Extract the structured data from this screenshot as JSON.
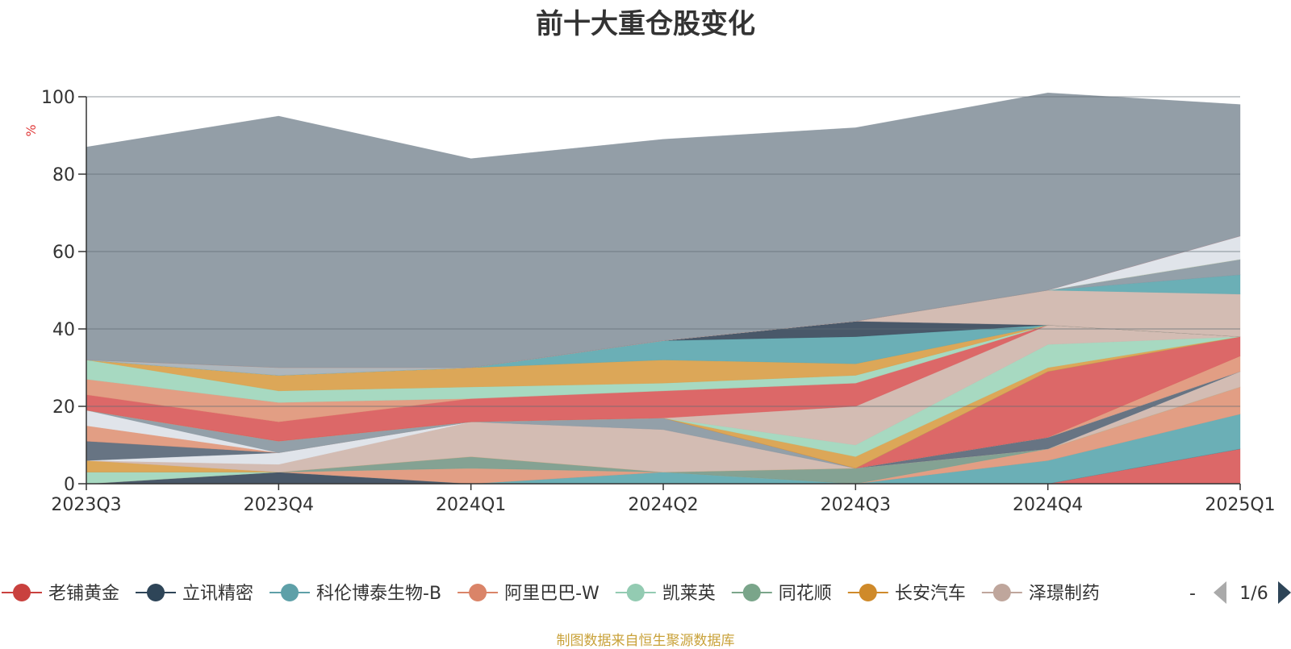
{
  "chart_data": {
    "type": "area",
    "title": "前十大重仓股变化",
    "ylabel": "%",
    "ylim": [
      0,
      100
    ],
    "yticks": [
      0,
      20,
      40,
      60,
      80,
      100
    ],
    "categories": [
      "2023Q3",
      "2023Q4",
      "2024Q1",
      "2024Q2",
      "2024Q3",
      "2024Q4",
      "2025Q1"
    ],
    "grid": true,
    "legend_position": "bottom",
    "stacked": true,
    "series": [
      {
        "name": "老铺黄金",
        "color": "#d95b5b",
        "values": [
          0,
          0,
          0,
          0,
          0,
          0,
          9
        ]
      },
      {
        "name": "立讯精密",
        "color": "#3a4a5c",
        "values": [
          0,
          3,
          0,
          0,
          0,
          0,
          0
        ]
      },
      {
        "name": "科伦博泰生物-B",
        "color": "#5ea8b0",
        "values": [
          0,
          0,
          0,
          3,
          0,
          6,
          9
        ]
      },
      {
        "name": "阿里巴巴-W",
        "color": "#e0967a",
        "values": [
          0,
          0,
          4,
          0,
          0,
          3,
          7
        ]
      },
      {
        "name": "凯莱英",
        "color": "#9fd6bc",
        "values": [
          3,
          0,
          0,
          0,
          0,
          0,
          0
        ]
      },
      {
        "name": "同花顺",
        "color": "#7a9a8a",
        "values": [
          0,
          0,
          3,
          0,
          4,
          0,
          0
        ]
      },
      {
        "name": "长安汽车",
        "color": "#d9a04a",
        "values": [
          3,
          0,
          0,
          0,
          0,
          0,
          0
        ]
      },
      {
        "name": "泽璟制药",
        "color": "#cfb6ad",
        "values": [
          0,
          2,
          9,
          11,
          0,
          0,
          4
        ]
      },
      {
        "name": "",
        "color": "#dde2e8",
        "values": [
          0,
          3,
          0,
          0,
          0,
          0,
          0
        ]
      },
      {
        "name": "",
        "color": "#5a6878",
        "values": [
          5,
          0,
          0,
          0,
          0,
          3,
          0
        ]
      },
      {
        "name": "",
        "color": "#e0967a",
        "values": [
          4,
          0,
          0,
          0,
          0,
          0,
          0
        ]
      },
      {
        "name": "",
        "color": "#dde2e8",
        "values": [
          4,
          0,
          0,
          0,
          0,
          0,
          0
        ]
      },
      {
        "name": "",
        "color": "#8a98a2",
        "values": [
          0,
          3,
          0,
          3,
          0,
          0,
          0
        ]
      },
      {
        "name": "",
        "color": "#e0967a",
        "values": [
          0,
          0,
          0,
          0,
          0,
          0,
          4
        ]
      },
      {
        "name": "",
        "color": "#d95b5b",
        "values": [
          0,
          0,
          0,
          0,
          0,
          17,
          5
        ]
      },
      {
        "name": "",
        "color": "#7a9a8a",
        "values": [
          0,
          0,
          0,
          0,
          0,
          0,
          0
        ]
      },
      {
        "name": "",
        "color": "#d9a04a",
        "values": [
          0,
          0,
          0,
          0,
          3,
          1,
          0
        ]
      },
      {
        "name": "",
        "color": "#9fd6bc",
        "values": [
          0,
          0,
          0,
          0,
          3,
          6,
          0
        ]
      },
      {
        "name": "",
        "color": "#cfb6ad",
        "values": [
          0,
          0,
          0,
          0,
          10,
          5,
          0
        ]
      },
      {
        "name": "",
        "color": "#d95b5b",
        "values": [
          4,
          5,
          6,
          7,
          6,
          0,
          0
        ]
      },
      {
        "name": "",
        "color": "#e0967a",
        "values": [
          4,
          5,
          0,
          0,
          0,
          0,
          0
        ]
      },
      {
        "name": "",
        "color": "#9fd6bc",
        "values": [
          5,
          3,
          3,
          2,
          2,
          0,
          0
        ]
      },
      {
        "name": "",
        "color": "#d9a04a",
        "values": [
          0,
          4,
          5,
          6,
          3,
          0,
          0
        ]
      },
      {
        "name": "",
        "color": "#5ea8b0",
        "values": [
          0,
          0,
          0,
          5,
          7,
          0,
          0
        ]
      },
      {
        "name": "",
        "color": "#3a4a5c",
        "values": [
          0,
          0,
          0,
          0,
          4,
          0,
          0
        ]
      },
      {
        "name": "",
        "color": "#cfb6ad",
        "values": [
          0,
          0,
          0,
          0,
          0,
          9,
          11
        ]
      },
      {
        "name": "",
        "color": "#5ea8b0",
        "values": [
          0,
          0,
          0,
          0,
          0,
          0,
          5
        ]
      },
      {
        "name": "",
        "color": "#8a98a2",
        "values": [
          0,
          0,
          0,
          0,
          0,
          0,
          4
        ]
      },
      {
        "name": "",
        "color": "#5ea8b0",
        "values": [
          0,
          0,
          0,
          0,
          0,
          0,
          0
        ]
      },
      {
        "name": "",
        "color": "#9fd6bc",
        "values": [
          0,
          0,
          0,
          0,
          0,
          0,
          0
        ]
      },
      {
        "name": "",
        "color": "#a7b0b6",
        "values": [
          0,
          2,
          0,
          0,
          0,
          0,
          0
        ]
      },
      {
        "name": "",
        "color": "#cfb6ad",
        "values": [
          0,
          0,
          0,
          0,
          0,
          0,
          0
        ]
      },
      {
        "name": "",
        "color": "#d9a04a",
        "values": [
          0,
          0,
          0,
          0,
          0,
          0,
          0
        ]
      },
      {
        "name": "",
        "color": "#9fd6bc",
        "values": [
          0,
          0,
          0,
          0,
          0,
          0,
          0
        ]
      },
      {
        "name": "",
        "color": "#dde2e8",
        "values": [
          0,
          0,
          0,
          0,
          0,
          0,
          6
        ]
      },
      {
        "name": "",
        "color": "#d95b5b",
        "values": [
          0,
          0,
          0,
          0,
          0,
          0,
          0
        ]
      },
      {
        "name": "",
        "color": "#8a96a0",
        "values": [
          55,
          65,
          54,
          52,
          50,
          51,
          34
        ]
      }
    ]
  },
  "legend": {
    "items": [
      {
        "label": "老铺黄金",
        "color": "#c9413e"
      },
      {
        "label": "立讯精密",
        "color": "#2e4558"
      },
      {
        "label": "科伦博泰生物-B",
        "color": "#5ea0a8"
      },
      {
        "label": "阿里巴巴-W",
        "color": "#da8468"
      },
      {
        "label": "凯莱英",
        "color": "#93cbb2"
      },
      {
        "label": "同花顺",
        "color": "#7aa58a"
      },
      {
        "label": "长安汽车",
        "color": "#cf8a2a"
      },
      {
        "label": "泽璟制药",
        "color": "#bfa69c"
      }
    ],
    "more": "-",
    "page": "1/6"
  },
  "source_note": "制图数据来自恒生聚源数据库"
}
